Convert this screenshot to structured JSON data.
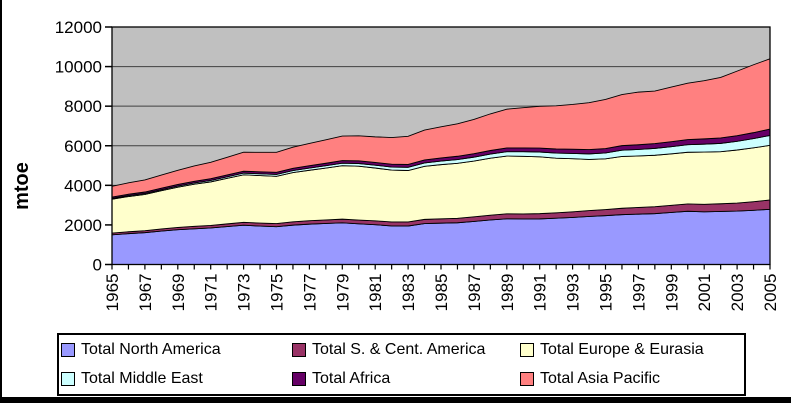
{
  "chart_data": {
    "type": "area",
    "stacked": true,
    "title": "",
    "xlabel": "",
    "ylabel": "mtoe",
    "unit": "mtoe",
    "ylim": [
      0,
      12000
    ],
    "y_ticks": [
      0,
      2000,
      4000,
      6000,
      8000,
      10000,
      12000
    ],
    "x_tick_labels_shown": [
      "1965",
      "1967",
      "1969",
      "1971",
      "1973",
      "1975",
      "1977",
      "1979",
      "1981",
      "1983",
      "1985",
      "1987",
      "1989",
      "1991",
      "1993",
      "1995",
      "1997",
      "1999",
      "2001",
      "2003",
      "2005"
    ],
    "grid": "horizontal",
    "grid_color": "#404040",
    "plot_background": "#c0c0c0",
    "legend_position": "bottom",
    "categories": [
      1965,
      1966,
      1967,
      1968,
      1969,
      1970,
      1971,
      1972,
      1973,
      1974,
      1975,
      1976,
      1977,
      1978,
      1979,
      1980,
      1981,
      1982,
      1983,
      1984,
      1985,
      1986,
      1987,
      1988,
      1989,
      1990,
      1991,
      1992,
      1993,
      1994,
      1995,
      1996,
      1997,
      1998,
      1999,
      2000,
      2001,
      2002,
      2003,
      2004,
      2005
    ],
    "series": [
      {
        "name": "Total North America",
        "color": "#9999FF",
        "values": [
          1500,
          1560,
          1610,
          1690,
          1760,
          1805,
          1845,
          1915,
          1985,
          1940,
          1910,
          1990,
          2040,
          2075,
          2105,
          2055,
          2010,
          1950,
          1945,
          2070,
          2090,
          2110,
          2175,
          2250,
          2310,
          2300,
          2305,
          2340,
          2380,
          2430,
          2470,
          2520,
          2545,
          2570,
          2630,
          2690,
          2660,
          2680,
          2700,
          2740,
          2790
        ]
      },
      {
        "name": "Total S. & Cent. America",
        "color": "#993366",
        "values": [
          90,
          95,
          100,
          107,
          114,
          122,
          130,
          138,
          147,
          152,
          157,
          165,
          172,
          179,
          187,
          192,
          196,
          200,
          204,
          210,
          216,
          224,
          232,
          241,
          250,
          257,
          265,
          274,
          284,
          296,
          308,
          322,
          338,
          350,
          360,
          372,
          382,
          390,
          405,
          435,
          470
        ]
      },
      {
        "name": "Total Europe & Eurasia",
        "color": "#FFFFCC",
        "values": [
          1710,
          1780,
          1830,
          1930,
          2030,
          2130,
          2200,
          2300,
          2400,
          2400,
          2390,
          2490,
          2550,
          2620,
          2700,
          2720,
          2670,
          2620,
          2600,
          2680,
          2740,
          2780,
          2820,
          2880,
          2920,
          2910,
          2870,
          2760,
          2680,
          2580,
          2560,
          2620,
          2600,
          2600,
          2600,
          2610,
          2640,
          2630,
          2680,
          2720,
          2760
        ]
      },
      {
        "name": "Total Middle East",
        "color": "#CCFFFF",
        "values": [
          45,
          48,
          52,
          56,
          61,
          66,
          72,
          78,
          85,
          90,
          96,
          103,
          111,
          119,
          128,
          136,
          144,
          152,
          160,
          169,
          178,
          188,
          198,
          209,
          220,
          232,
          244,
          257,
          270,
          284,
          299,
          314,
          330,
          347,
          364,
          382,
          400,
          420,
          441,
          468,
          500
        ]
      },
      {
        "name": "Total Africa",
        "color": "#660066",
        "values": [
          65,
          68,
          71,
          75,
          79,
          83,
          87,
          92,
          97,
          101,
          106,
          111,
          117,
          123,
          129,
          134,
          139,
          144,
          149,
          155,
          161,
          167,
          173,
          180,
          187,
          193,
          199,
          205,
          211,
          217,
          223,
          230,
          237,
          244,
          251,
          258,
          265,
          273,
          285,
          300,
          325
        ]
      },
      {
        "name": "Total Asia Pacific",
        "color": "#FF8080",
        "values": [
          540,
          575,
          610,
          660,
          715,
          775,
          830,
          895,
          960,
          985,
          1010,
          1070,
          1125,
          1185,
          1240,
          1265,
          1290,
          1350,
          1420,
          1510,
          1570,
          1640,
          1730,
          1850,
          1960,
          2030,
          2110,
          2180,
          2260,
          2370,
          2480,
          2580,
          2660,
          2650,
          2760,
          2850,
          2940,
          3060,
          3260,
          3430,
          3550
        ]
      }
    ]
  },
  "window": {
    "left_edge_color": "#000000",
    "bottom_bar_color": "#000000"
  }
}
